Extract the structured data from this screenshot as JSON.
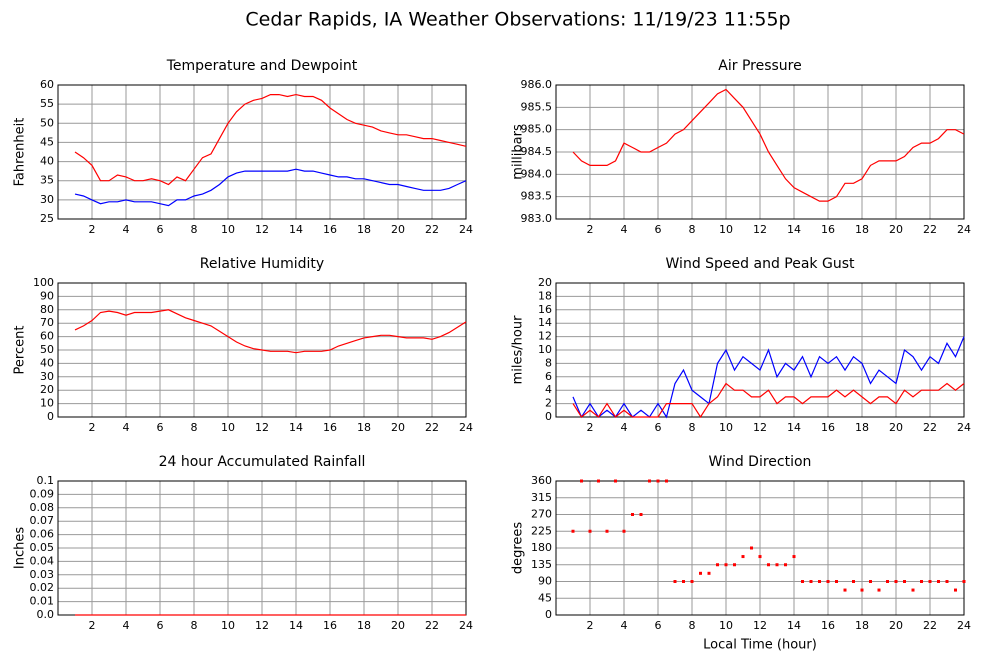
{
  "title": "Cedar Rapids, IA Weather Observations: 11/19/23 11:55p",
  "chart_data": [
    {
      "type": "line",
      "title": "Temperature and Dewpoint",
      "ylabel": "Fahrenheit",
      "x": [
        1,
        1.5,
        2,
        2.5,
        3,
        3.5,
        4,
        4.5,
        5,
        5.5,
        6,
        6.5,
        7,
        7.5,
        8,
        8.5,
        9,
        9.5,
        10,
        10.5,
        11,
        11.5,
        12,
        12.5,
        13,
        13.5,
        14,
        14.5,
        15,
        15.5,
        16,
        16.5,
        17,
        17.5,
        18,
        18.5,
        19,
        19.5,
        20,
        20.5,
        21,
        21.5,
        22,
        22.5,
        23,
        23.5,
        24
      ],
      "series": [
        {
          "color": "#ff0000",
          "values": [
            42.5,
            41,
            39,
            35,
            35,
            36.5,
            36,
            35,
            35,
            35.5,
            35,
            34,
            36,
            35,
            38,
            41,
            42,
            46,
            50,
            53,
            55,
            56,
            56.5,
            57.5,
            57.5,
            57,
            57.5,
            57,
            57,
            56,
            54,
            52.5,
            51,
            50,
            49.5,
            49,
            48,
            47.5,
            47,
            47,
            46.5,
            46,
            46,
            45.5,
            45,
            44.5,
            44
          ]
        },
        {
          "color": "#0000ff",
          "values": [
            31.5,
            31,
            30,
            29,
            29.5,
            29.5,
            30,
            29.5,
            29.5,
            29.5,
            29,
            28.5,
            30,
            30,
            31,
            31.5,
            32.5,
            34,
            36,
            37,
            37.5,
            37.5,
            37.5,
            37.5,
            37.5,
            37.5,
            38,
            37.5,
            37.5,
            37,
            36.5,
            36,
            36,
            35.5,
            35.5,
            35,
            34.5,
            34,
            34,
            33.5,
            33,
            32.5,
            32.5,
            32.5,
            33,
            34,
            35
          ]
        }
      ],
      "xlim": [
        0,
        24
      ],
      "xticks": [
        2,
        4,
        6,
        8,
        10,
        12,
        14,
        16,
        18,
        20,
        22,
        24
      ],
      "ylim": [
        25,
        60
      ],
      "yticks": [
        25,
        30,
        35,
        40,
        45,
        50,
        55,
        60
      ],
      "grid": true
    },
    {
      "type": "line",
      "title": "Air Pressure",
      "ylabel": "millibars",
      "x": [
        1,
        1.5,
        2,
        2.5,
        3,
        3.5,
        4,
        4.5,
        5,
        5.5,
        6,
        6.5,
        7,
        7.5,
        8,
        8.5,
        9,
        9.5,
        10,
        10.5,
        11,
        11.5,
        12,
        12.5,
        13,
        13.5,
        14,
        14.5,
        15,
        15.5,
        16,
        16.5,
        17,
        17.5,
        18,
        18.5,
        19,
        19.5,
        20,
        20.5,
        21,
        21.5,
        22,
        22.5,
        23,
        23.5,
        24
      ],
      "series": [
        {
          "color": "#ff0000",
          "values": [
            984.5,
            984.3,
            984.2,
            984.2,
            984.2,
            984.3,
            984.7,
            984.6,
            984.5,
            984.5,
            984.6,
            984.7,
            984.9,
            985.0,
            985.2,
            985.4,
            985.6,
            985.8,
            985.9,
            985.7,
            985.5,
            985.2,
            984.9,
            984.5,
            984.2,
            983.9,
            983.7,
            983.6,
            983.5,
            983.4,
            983.4,
            983.5,
            983.8,
            983.8,
            983.9,
            984.2,
            984.3,
            984.3,
            984.3,
            984.4,
            984.6,
            984.7,
            984.7,
            984.8,
            985.0,
            985.0,
            984.9
          ]
        }
      ],
      "xlim": [
        0,
        24
      ],
      "xticks": [
        2,
        4,
        6,
        8,
        10,
        12,
        14,
        16,
        18,
        20,
        22,
        24
      ],
      "ylim": [
        983,
        986
      ],
      "yticks": [
        {
          "value": 983,
          "label": "983.0"
        },
        {
          "value": 983.5,
          "label": "983.5"
        },
        {
          "value": 984,
          "label": "984.0"
        },
        {
          "value": 984.5,
          "label": "984.5"
        },
        {
          "value": 985,
          "label": "985.0"
        },
        {
          "value": 985.5,
          "label": "985.5"
        },
        {
          "value": 986,
          "label": "986.0"
        }
      ],
      "grid": true
    },
    {
      "type": "line",
      "title": "Relative Humidity",
      "ylabel": "Percent",
      "x": [
        1,
        1.5,
        2,
        2.5,
        3,
        3.5,
        4,
        4.5,
        5,
        5.5,
        6,
        6.5,
        7,
        7.5,
        8,
        8.5,
        9,
        9.5,
        10,
        10.5,
        11,
        11.5,
        12,
        12.5,
        13,
        13.5,
        14,
        14.5,
        15,
        15.5,
        16,
        16.5,
        17,
        17.5,
        18,
        18.5,
        19,
        19.5,
        20,
        20.5,
        21,
        21.5,
        22,
        22.5,
        23,
        23.5,
        24
      ],
      "series": [
        {
          "color": "#ff0000",
          "values": [
            65,
            68,
            72,
            78,
            79,
            78,
            76,
            78,
            78,
            78,
            79,
            80,
            77,
            74,
            72,
            70,
            68,
            64,
            60,
            56,
            53,
            51,
            50,
            49,
            49,
            49,
            48,
            49,
            49,
            49,
            50,
            53,
            55,
            57,
            59,
            60,
            61,
            61,
            60,
            59,
            59,
            59,
            58,
            60,
            63,
            67,
            71
          ]
        }
      ],
      "xlim": [
        0,
        24
      ],
      "xticks": [
        2,
        4,
        6,
        8,
        10,
        12,
        14,
        16,
        18,
        20,
        22,
        24
      ],
      "ylim": [
        0,
        100
      ],
      "yticks": [
        0,
        10,
        20,
        30,
        40,
        50,
        60,
        70,
        80,
        90,
        100
      ],
      "grid": true
    },
    {
      "type": "line",
      "title": "Wind Speed and Peak Gust",
      "ylabel": "miles/hour",
      "x": [
        1,
        1.5,
        2,
        2.5,
        3,
        3.5,
        4,
        4.5,
        5,
        5.5,
        6,
        6.5,
        7,
        7.5,
        8,
        8.5,
        9,
        9.5,
        10,
        10.5,
        11,
        11.5,
        12,
        12.5,
        13,
        13.5,
        14,
        14.5,
        15,
        15.5,
        16,
        16.5,
        17,
        17.5,
        18,
        18.5,
        19,
        19.5,
        20,
        20.5,
        21,
        21.5,
        22,
        22.5,
        23,
        23.5,
        24
      ],
      "series": [
        {
          "color": "#0000ff",
          "values": [
            3,
            0,
            2,
            0,
            1,
            0,
            2,
            0,
            1,
            0,
            2,
            0,
            5,
            7,
            4,
            3,
            2,
            8,
            10,
            7,
            9,
            8,
            7,
            10,
            6,
            8,
            7,
            9,
            6,
            9,
            8,
            9,
            7,
            9,
            8,
            5,
            7,
            6,
            5,
            10,
            9,
            7,
            9,
            8,
            11,
            9,
            12
          ]
        },
        {
          "color": "#ff0000",
          "values": [
            2,
            0,
            1,
            0,
            2,
            0,
            1,
            0,
            0,
            0,
            0,
            2,
            2,
            2,
            2,
            0,
            2,
            3,
            5,
            4,
            4,
            3,
            3,
            4,
            2,
            3,
            3,
            2,
            3,
            3,
            3,
            4,
            3,
            4,
            3,
            2,
            3,
            3,
            2,
            4,
            3,
            4,
            4,
            4,
            5,
            4,
            5
          ]
        }
      ],
      "xlim": [
        0,
        24
      ],
      "xticks": [
        2,
        4,
        6,
        8,
        10,
        12,
        14,
        16,
        18,
        20,
        22,
        24
      ],
      "ylim": [
        0,
        20
      ],
      "yticks": [
        0,
        2,
        4,
        6,
        8,
        10,
        12,
        14,
        16,
        18,
        20
      ],
      "grid": true
    },
    {
      "type": "line",
      "title": "24 hour Accumulated Rainfall",
      "ylabel": "Inches",
      "x": [
        1,
        24
      ],
      "series": [
        {
          "color": "#ff0000",
          "values": [
            0,
            0
          ]
        }
      ],
      "xlim": [
        0,
        24
      ],
      "xticks": [
        2,
        4,
        6,
        8,
        10,
        12,
        14,
        16,
        18,
        20,
        22,
        24
      ],
      "ylim": [
        0,
        0.1
      ],
      "yticks": [
        {
          "value": 0,
          "label": "0.0"
        },
        0.01,
        0.02,
        0.03,
        0.04,
        0.05,
        0.06,
        0.07,
        0.08,
        0.09,
        0.1
      ],
      "grid": true
    },
    {
      "type": "scatter",
      "title": "Wind Direction",
      "ylabel": "degrees",
      "xlabel": "Local Time (hour)",
      "x": [
        1,
        1.5,
        2,
        2.5,
        3,
        3.5,
        4,
        4.5,
        5,
        5.5,
        6,
        6.5,
        7,
        7.5,
        8,
        8.5,
        9,
        9.5,
        10,
        10.5,
        11,
        11.5,
        12,
        12.5,
        13,
        13.5,
        14,
        14.5,
        15,
        15.5,
        16,
        16.5,
        17,
        17.5,
        18,
        18.5,
        19,
        19.5,
        20,
        20.5,
        21,
        21.5,
        22,
        22.5,
        23,
        23.5,
        24
      ],
      "series": [
        {
          "color": "#ff0000",
          "values": [
            225,
            360,
            225,
            360,
            225,
            360,
            225,
            270,
            270,
            360,
            360,
            360,
            90,
            90,
            90,
            112,
            112,
            135,
            135,
            135,
            157,
            180,
            157,
            135,
            135,
            135,
            157,
            90,
            90,
            90,
            90,
            90,
            67,
            90,
            67,
            90,
            67,
            90,
            90,
            90,
            67,
            90,
            90,
            90,
            90,
            67,
            90
          ]
        }
      ],
      "xlim": [
        0,
        24
      ],
      "xticks": [
        2,
        4,
        6,
        8,
        10,
        12,
        14,
        16,
        18,
        20,
        22,
        24
      ],
      "ylim": [
        0,
        360
      ],
      "yticks": [
        0,
        45,
        90,
        135,
        180,
        225,
        270,
        315,
        360
      ],
      "grid": true
    }
  ]
}
